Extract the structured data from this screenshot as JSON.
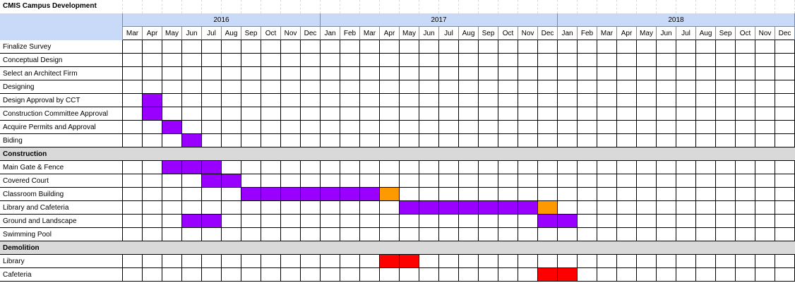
{
  "sheet": {
    "title": "CMIS Campus Development",
    "colors": {
      "header_bg": "#c9daf8",
      "section_bg": "#d9d9d9",
      "purple": "#9900ff",
      "orange": "#ff9900",
      "red": "#ff0000"
    },
    "years": [
      {
        "label": "2016",
        "start": 0,
        "span": 10
      },
      {
        "label": "2017",
        "start": 10,
        "span": 12
      },
      {
        "label": "2018",
        "start": 22,
        "span": 12
      }
    ],
    "months": [
      "Mar",
      "Apr",
      "May",
      "Jun",
      "Jul",
      "Aug",
      "Sep",
      "Oct",
      "Nov",
      "Dec",
      "Jan",
      "Feb",
      "Mar",
      "Apr",
      "May",
      "Jun",
      "Jul",
      "Aug",
      "Sep",
      "Oct",
      "Nov",
      "Dec",
      "Jan",
      "Feb",
      "Mar",
      "Apr",
      "May",
      "Jun",
      "Jul",
      "Aug",
      "Sep",
      "Oct",
      "Nov",
      "Dec"
    ],
    "rows": [
      {
        "type": "task",
        "label": "Finalize Survey",
        "bars": []
      },
      {
        "type": "task",
        "label": "Conceptual Design",
        "bars": []
      },
      {
        "type": "task",
        "label": "Select an Architect Firm",
        "bars": []
      },
      {
        "type": "task",
        "label": "Designing",
        "bars": []
      },
      {
        "type": "task",
        "label": "Design Approval by CCT",
        "bars": [
          {
            "start": 1,
            "len": 1,
            "color": "purple"
          }
        ]
      },
      {
        "type": "task",
        "label": "Construction Committee Approval",
        "bars": [
          {
            "start": 1,
            "len": 1,
            "color": "purple"
          }
        ]
      },
      {
        "type": "task",
        "label": "Acquire Permits and Approval",
        "bars": [
          {
            "start": 2,
            "len": 1,
            "color": "purple"
          }
        ]
      },
      {
        "type": "task",
        "label": "Biding",
        "bars": [
          {
            "start": 3,
            "len": 1,
            "color": "purple"
          }
        ]
      },
      {
        "type": "section",
        "label": "Construction"
      },
      {
        "type": "task",
        "label": "Main Gate & Fence",
        "bars": [
          {
            "start": 2,
            "len": 3,
            "color": "purple"
          }
        ]
      },
      {
        "type": "task",
        "label": "Covered Court",
        "bars": [
          {
            "start": 4,
            "len": 2,
            "color": "purple"
          }
        ]
      },
      {
        "type": "task",
        "label": "Classroom Building",
        "bars": [
          {
            "start": 6,
            "len": 7,
            "color": "purple"
          },
          {
            "start": 13,
            "len": 1,
            "color": "orange"
          }
        ]
      },
      {
        "type": "task",
        "label": "Library and Cafeteria",
        "bars": [
          {
            "start": 14,
            "len": 7,
            "color": "purple"
          },
          {
            "start": 21,
            "len": 1,
            "color": "orange"
          }
        ]
      },
      {
        "type": "task",
        "label": "Ground and Landscape",
        "bars": [
          {
            "start": 3,
            "len": 2,
            "color": "purple"
          },
          {
            "start": 21,
            "len": 2,
            "color": "purple"
          }
        ]
      },
      {
        "type": "task",
        "label": "Swimming Pool",
        "bars": []
      },
      {
        "type": "section",
        "label": "Demolition"
      },
      {
        "type": "task",
        "label": "Library",
        "bars": [
          {
            "start": 13,
            "len": 2,
            "color": "red"
          }
        ]
      },
      {
        "type": "task",
        "label": "Cafeteria",
        "bars": [
          {
            "start": 21,
            "len": 2,
            "color": "red"
          }
        ]
      }
    ]
  }
}
